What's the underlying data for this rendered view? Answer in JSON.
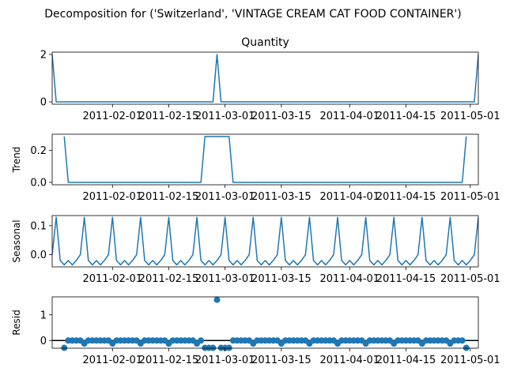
{
  "chart_data": {
    "type": "line",
    "suptitle": "Decomposition for ('Switzerland', 'VINTAGE CREAM CAT FOOD CONTAINER')",
    "start_date": "2011-01-17",
    "num_days": 107,
    "x_ticks": [
      "2011-02-01",
      "2011-02-15",
      "2011-03-01",
      "2011-03-15",
      "2011-04-01",
      "2011-04-15",
      "2011-05-01"
    ],
    "panels": [
      {
        "id": "observed",
        "title": "Quantity",
        "ylabel": "",
        "kind": "line",
        "ylim": [
          -0.1,
          2.1
        ],
        "yticks": [
          0,
          2
        ],
        "events": [
          {
            "date": "2011-01-17",
            "value": 2
          },
          {
            "date": "2011-02-27",
            "value": 2
          },
          {
            "date": "2011-05-03",
            "value": 2
          }
        ],
        "default": 0
      },
      {
        "id": "trend",
        "title": "",
        "ylabel": "Trend",
        "kind": "line",
        "ylim": [
          -0.015,
          0.3
        ],
        "yticks": [
          0.0,
          0.2
        ],
        "ytick_labels": [
          "0.0",
          "0.2"
        ],
        "points": [
          {
            "date": "2011-01-20",
            "value": 0.286
          },
          {
            "date": "2011-01-21",
            "value": 0.0
          },
          {
            "date": "2011-02-23",
            "value": 0.0
          },
          {
            "date": "2011-02-24",
            "value": 0.286
          },
          {
            "date": "2011-03-02",
            "value": 0.286
          },
          {
            "date": "2011-03-03",
            "value": 0.0
          },
          {
            "date": "2011-04-29",
            "value": 0.0
          },
          {
            "date": "2011-04-30",
            "value": 0.286
          }
        ]
      },
      {
        "id": "seasonal",
        "title": "",
        "ylabel": "Seasonal",
        "kind": "line",
        "ylim": [
          -0.042,
          0.135
        ],
        "yticks": [
          0.0,
          0.1
        ],
        "ytick_labels": [
          "0.0",
          "0.1"
        ],
        "period_pattern": [
          0.0,
          0.129,
          -0.02,
          -0.035,
          -0.02,
          -0.035,
          -0.02
        ]
      },
      {
        "id": "resid",
        "title": "",
        "ylabel": "Resid",
        "kind": "scatter",
        "ylim": [
          -0.3,
          1.7
        ],
        "yticks": [
          0,
          1
        ],
        "zero_line": true,
        "points": [
          {
            "date": "2011-01-20",
            "value": -0.286
          },
          {
            "date": "2011-02-24",
            "value": -0.286
          },
          {
            "date": "2011-02-25",
            "value": -0.286
          },
          {
            "date": "2011-02-26",
            "value": -0.286
          },
          {
            "date": "2011-02-27",
            "value": 1.587
          },
          {
            "date": "2011-02-28",
            "value": -0.286
          },
          {
            "date": "2011-03-01",
            "value": -0.286
          },
          {
            "date": "2011-03-02",
            "value": -0.286
          },
          {
            "date": "2011-04-30",
            "value": -0.286
          }
        ],
        "pattern_default": [
          0.0,
          0.0,
          0.0,
          0.0,
          0.0,
          0.0,
          0.0
        ]
      }
    ]
  }
}
